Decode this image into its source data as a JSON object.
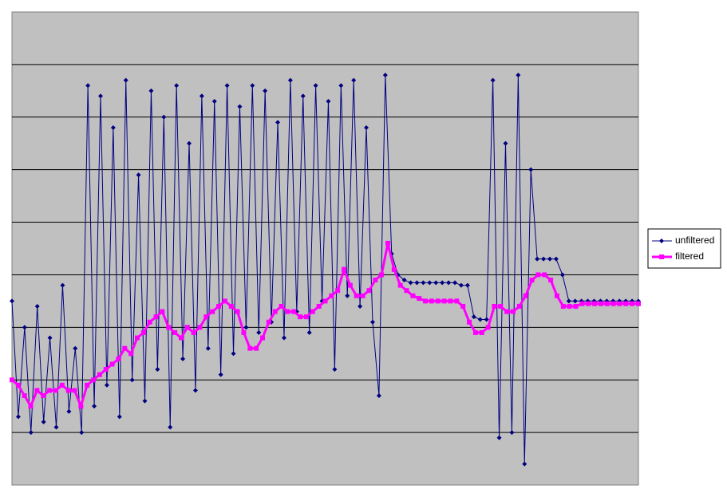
{
  "chart_data": {
    "type": "line",
    "ylim": [
      0,
      9
    ],
    "yticks": [
      1,
      2,
      3,
      4,
      5,
      6,
      7,
      8
    ],
    "grid": true,
    "legend": "right",
    "series": [
      {
        "name": "unfiltered",
        "color": "#000080",
        "marker": "diamond",
        "values": [
          3.5,
          1.3,
          3.0,
          1.0,
          3.4,
          1.2,
          2.8,
          1.1,
          3.8,
          1.4,
          2.6,
          1.0,
          7.6,
          1.5,
          7.4,
          1.9,
          6.8,
          1.3,
          7.7,
          2.0,
          5.9,
          1.6,
          7.5,
          2.2,
          7.0,
          1.1,
          7.6,
          2.4,
          6.5,
          1.8,
          7.4,
          2.6,
          7.3,
          2.1,
          7.6,
          2.5,
          7.2,
          3.0,
          7.6,
          2.9,
          7.5,
          3.1,
          6.9,
          2.8,
          7.7,
          3.3,
          7.4,
          2.9,
          7.6,
          3.5,
          7.3,
          2.2,
          7.6,
          3.6,
          7.7,
          3.4,
          6.8,
          3.1,
          1.7,
          7.8,
          4.4,
          4.0,
          3.9,
          3.85,
          3.85,
          3.85,
          3.85,
          3.85,
          3.85,
          3.85,
          3.85,
          3.8,
          3.8,
          3.2,
          3.15,
          3.15,
          7.7,
          0.9,
          6.5,
          1.0,
          7.8,
          0.4,
          6.0,
          4.3,
          4.3,
          4.3,
          4.3,
          4.0,
          3.5,
          3.5,
          3.5,
          3.5,
          3.5,
          3.5,
          3.5,
          3.5,
          3.5,
          3.5,
          3.5,
          3.5
        ]
      },
      {
        "name": "filtered",
        "color": "#ff00ff",
        "marker": "square",
        "values": [
          2.0,
          1.9,
          1.7,
          1.5,
          1.8,
          1.7,
          1.8,
          1.8,
          1.9,
          1.8,
          1.8,
          1.5,
          1.9,
          2.0,
          2.1,
          2.2,
          2.3,
          2.4,
          2.6,
          2.5,
          2.8,
          2.9,
          3.1,
          3.2,
          3.3,
          3.0,
          2.9,
          2.8,
          3.0,
          2.9,
          3.0,
          3.2,
          3.3,
          3.4,
          3.5,
          3.4,
          3.3,
          2.9,
          2.6,
          2.6,
          2.8,
          3.1,
          3.3,
          3.4,
          3.3,
          3.3,
          3.2,
          3.2,
          3.3,
          3.4,
          3.5,
          3.6,
          3.7,
          4.1,
          3.8,
          3.6,
          3.6,
          3.7,
          3.9,
          4.0,
          4.6,
          4.1,
          3.8,
          3.7,
          3.6,
          3.55,
          3.5,
          3.5,
          3.5,
          3.5,
          3.5,
          3.5,
          3.4,
          3.1,
          2.9,
          2.9,
          3.0,
          3.4,
          3.4,
          3.3,
          3.3,
          3.4,
          3.6,
          3.9,
          4.0,
          4.0,
          3.9,
          3.6,
          3.4,
          3.4,
          3.4,
          3.45,
          3.45,
          3.45,
          3.45,
          3.45,
          3.45,
          3.45,
          3.45,
          3.45,
          3.45
        ]
      }
    ]
  }
}
